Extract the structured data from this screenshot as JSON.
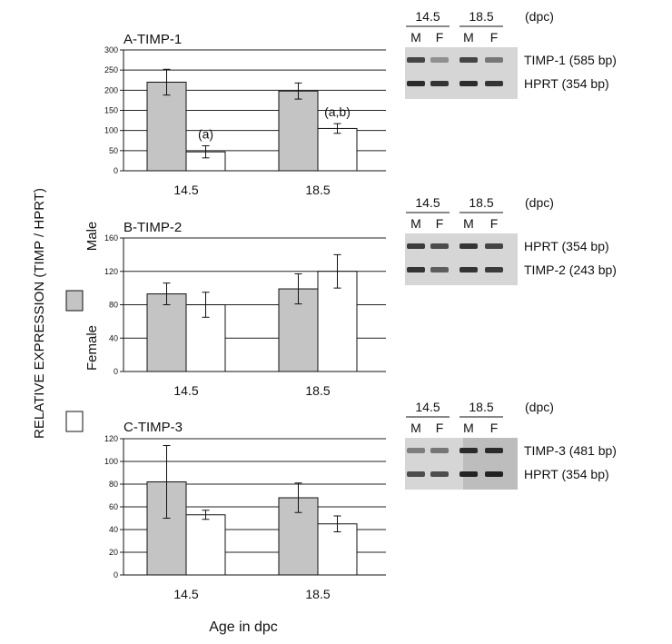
{
  "figure": {
    "ylabel": "RELATIVE EXPRESSION (TIMP / HPRT)",
    "xlabel": "Age in dpc",
    "legend": {
      "male": "Male",
      "female": "Female"
    }
  },
  "chart_data": [
    {
      "type": "bar",
      "title": "A-TIMP-1",
      "categories": [
        "14.5",
        "18.5"
      ],
      "ylim": [
        0,
        300
      ],
      "yticks": [
        0,
        50,
        100,
        150,
        200,
        250,
        300
      ],
      "grid": true,
      "series": [
        {
          "name": "Male",
          "values": [
            220,
            198
          ],
          "errors": [
            32,
            20
          ],
          "color": "#c4c4c4"
        },
        {
          "name": "Female",
          "values": [
            47,
            105
          ],
          "errors": [
            15,
            12
          ],
          "color": "#ffffff"
        }
      ],
      "annotations": [
        "(a)",
        "(a,b)"
      ]
    },
    {
      "type": "bar",
      "title": "B-TIMP-2",
      "categories": [
        "14.5",
        "18.5"
      ],
      "ylim": [
        0,
        160
      ],
      "yticks": [
        0,
        40,
        80,
        120,
        160
      ],
      "grid": true,
      "series": [
        {
          "name": "Male",
          "values": [
            93,
            99
          ],
          "errors": [
            13,
            18
          ],
          "color": "#c4c4c4"
        },
        {
          "name": "Female",
          "values": [
            80,
            120
          ],
          "errors": [
            15,
            20
          ],
          "color": "#ffffff"
        }
      ],
      "annotations": []
    },
    {
      "type": "bar",
      "title": "C-TIMP-3",
      "categories": [
        "14.5",
        "18.5"
      ],
      "ylim": [
        0,
        120
      ],
      "yticks": [
        0,
        20,
        40,
        60,
        80,
        100,
        120
      ],
      "grid": true,
      "series": [
        {
          "name": "Male",
          "values": [
            82,
            68
          ],
          "errors": [
            32,
            13
          ],
          "color": "#c4c4c4"
        },
        {
          "name": "Female",
          "values": [
            53,
            45
          ],
          "errors": [
            4,
            7
          ],
          "color": "#ffffff"
        }
      ],
      "annotations": []
    }
  ],
  "gels": [
    {
      "ages": [
        "14.5",
        "18.5"
      ],
      "unit": "(dpc)",
      "lanes": [
        "M",
        "F",
        "M",
        "F"
      ],
      "bands": [
        "TIMP-1 (585 bp)",
        "HPRT (354 bp)"
      ],
      "intensities": [
        [
          0.8,
          0.35,
          0.8,
          0.5
        ],
        [
          0.95,
          0.9,
          0.95,
          0.9
        ]
      ]
    },
    {
      "ages": [
        "14.5",
        "18.5"
      ],
      "unit": "(dpc)",
      "lanes": [
        "M",
        "F",
        "M",
        "F"
      ],
      "bands": [
        "HPRT (354 bp)",
        "TIMP-2 (243 bp)"
      ],
      "intensities": [
        [
          0.85,
          0.75,
          0.9,
          0.8
        ],
        [
          0.9,
          0.65,
          0.9,
          0.85
        ]
      ]
    },
    {
      "ages": [
        "14.5",
        "18.5"
      ],
      "unit": "(dpc)",
      "lanes": [
        "M",
        "F",
        "M",
        "F"
      ],
      "bands": [
        "TIMP-3 (481 bp)",
        "HPRT (354 bp)"
      ],
      "intensities": [
        [
          0.45,
          0.5,
          0.95,
          0.95
        ],
        [
          0.75,
          0.75,
          1.0,
          1.0
        ]
      ]
    }
  ]
}
